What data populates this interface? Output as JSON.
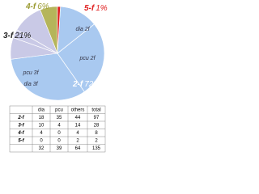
{
  "chart_data": {
    "type": "pie",
    "categories": [
      "2-f",
      "3-f",
      "4-f",
      "5-f"
    ],
    "values": [
      72,
      21,
      6,
      1
    ],
    "value_labels": [
      "72%",
      "21%",
      "6%",
      "1%"
    ],
    "colors": [
      "#a9c9f0",
      "#c9c9e6",
      "#b5b55a",
      "#e02020"
    ],
    "label_colors": [
      "#ffffff",
      "#222222",
      "#9a9a30",
      "#e02020"
    ],
    "segment_labels": [
      "dia 2f",
      "pcu 2f",
      "dia 3f",
      "pcu 3f"
    ]
  },
  "table": {
    "headers": [
      "dia",
      "pcu",
      "others",
      "total"
    ],
    "rows": [
      {
        "label": "2-f",
        "cells": [
          18,
          35,
          44,
          97
        ]
      },
      {
        "label": "3-f",
        "cells": [
          10,
          4,
          14,
          28
        ]
      },
      {
        "label": "4-f",
        "cells": [
          4,
          0,
          4,
          8
        ]
      },
      {
        "label": "5-f",
        "cells": [
          0,
          0,
          2,
          2
        ]
      },
      {
        "cells": [
          32,
          39,
          64,
          135
        ]
      }
    ]
  }
}
